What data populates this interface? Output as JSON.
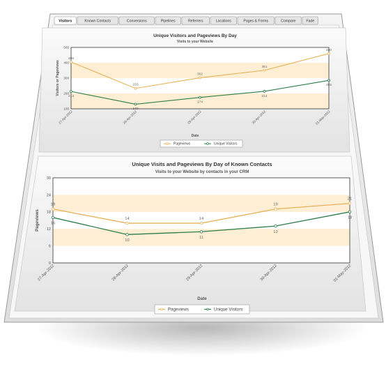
{
  "tabs": [
    {
      "label": "Visitors",
      "active": true
    },
    {
      "label": "Known Contacts",
      "active": false
    },
    {
      "label": "Conversions",
      "active": false
    },
    {
      "label": "Pipelines",
      "active": false
    },
    {
      "label": "Referrers",
      "active": false
    },
    {
      "label": "Locations",
      "active": false
    },
    {
      "label": "Pages & Forms",
      "active": false
    },
    {
      "label": "Compare",
      "active": false
    },
    {
      "label": "Fade",
      "active": false
    }
  ],
  "chart_data": [
    {
      "type": "line",
      "title": "Unique Visitors and Pageviews By Day",
      "subtitle": "Visits to your Website",
      "xlabel": "Date",
      "ylabel": "Visitors or Pageviews",
      "categories": [
        "27-Apr-2012",
        "28-Apr-2012",
        "29-Apr-2012",
        "30-Apr-2012",
        "01-May-2012"
      ],
      "yticks": [
        "100",
        "200",
        "300",
        "400",
        "500"
      ],
      "ylim": [
        100,
        500
      ],
      "series": [
        {
          "name": "Pageviews",
          "color": "#e8b25a",
          "values": [
            405,
            233,
            302,
            351,
            460
          ],
          "labels": [
            "405",
            "233",
            "302",
            "351",
            "460"
          ]
        },
        {
          "name": "Unique Visitors",
          "color": "#2e7d4a",
          "values": [
            213,
            130,
            174,
            214,
            285
          ],
          "labels": [
            "213",
            "130",
            "174",
            "214",
            "285"
          ]
        }
      ],
      "legend_position": "bottom"
    },
    {
      "type": "line",
      "title": "Unique Visits and Pageviews By Day of Known Contacts",
      "subtitle": "Visits to your Website by contacts in your CRM",
      "xlabel": "Date",
      "ylabel": "Pageviews",
      "categories": [
        "27-Apr-2012",
        "28-Apr-2012",
        "29-Apr-2012",
        "30-Apr-2012",
        "01-May-2012"
      ],
      "yticks": [
        "0",
        "6",
        "12",
        "18",
        "24",
        "30"
      ],
      "ylim": [
        0,
        30
      ],
      "series": [
        {
          "name": "Pageviews",
          "color": "#e8b25a",
          "values": [
            19,
            14,
            14,
            19,
            21
          ],
          "labels": [
            "19",
            "14",
            "14",
            "19",
            "21"
          ]
        },
        {
          "name": "Unique Visitors",
          "color": "#2e7d4a",
          "values": [
            16,
            10,
            11,
            13,
            18
          ],
          "labels": [
            "16",
            "10",
            "11",
            "13",
            "18"
          ]
        }
      ],
      "legend_position": "bottom"
    }
  ]
}
